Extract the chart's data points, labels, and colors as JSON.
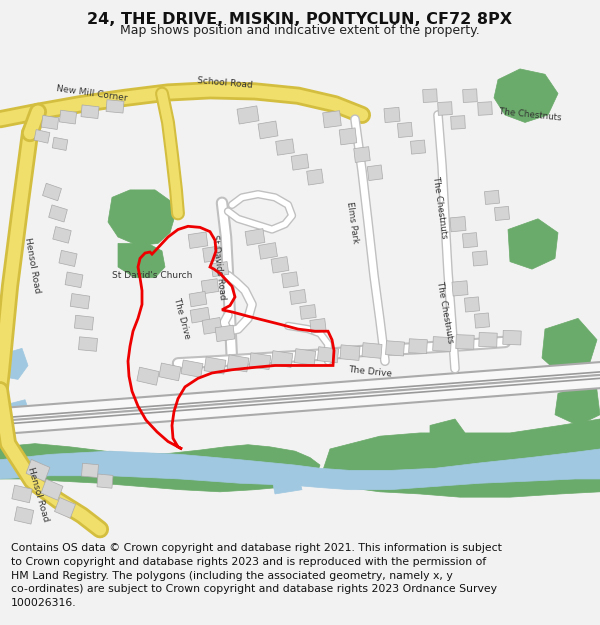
{
  "title": "24, THE DRIVE, MISKIN, PONTYCLUN, CF72 8PX",
  "subtitle": "Map shows position and indicative extent of the property.",
  "footer": "Contains OS data © Crown copyright and database right 2021. This information is subject\nto Crown copyright and database rights 2023 and is reproduced with the permission of\nHM Land Registry. The polygons (including the associated geometry, namely x, y\nco-ordinates) are subject to Crown copyright and database rights 2023 Ordnance Survey\n100026316.",
  "bg_color": "#f2f2f2",
  "map_bg": "#ffffff",
  "road_yellow": "#f0df6a",
  "road_yellow_border": "#d4be40",
  "building_fill": "#d4d4d4",
  "building_stroke": "#aaaaaa",
  "green_fill": "#6aaa6a",
  "water_fill": "#a0c8e0",
  "red_color": "#ee0000",
  "title_fontsize": 11.5,
  "subtitle_fontsize": 9.0,
  "footer_fontsize": 7.8
}
